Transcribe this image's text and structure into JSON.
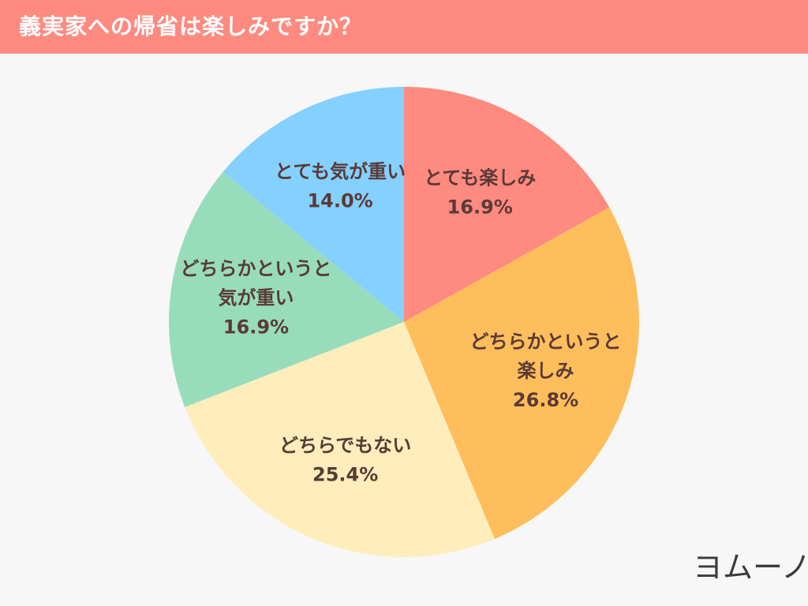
{
  "header": {
    "title": "義実家への帰省は楽しみですか？"
  },
  "brand": {
    "logo_text": "ヨムーノ"
  },
  "colors": {
    "header_bg": "#ff8a80",
    "label_text": "#5a3a36"
  },
  "chart_data": {
    "type": "pie",
    "title": "義実家への帰省は楽しみですか？",
    "start": "top",
    "direction": "clockwise",
    "slices": [
      {
        "label": "とても楽しみ",
        "lines": [
          "とても楽しみ"
        ],
        "value": 16.9,
        "value_label": "16.9%",
        "color": "#ff8a80"
      },
      {
        "label": "どちらかというと楽しみ",
        "lines": [
          "どちらかというと",
          "楽しみ"
        ],
        "value": 26.8,
        "value_label": "26.8%",
        "color": "#ffbe5c"
      },
      {
        "label": "どちらでもない",
        "lines": [
          "どちらでもない"
        ],
        "value": 25.4,
        "value_label": "25.4%",
        "color": "#ffedbb"
      },
      {
        "label": "どちらかというと気が重い",
        "lines": [
          "どちらかというと",
          "気が重い"
        ],
        "value": 16.9,
        "value_label": "16.9%",
        "color": "#98ddbb"
      },
      {
        "label": "とても気が重い",
        "lines": [
          "とても気が重い"
        ],
        "value": 14.0,
        "value_label": "14.0%",
        "color": "#84d0ff"
      }
    ]
  }
}
